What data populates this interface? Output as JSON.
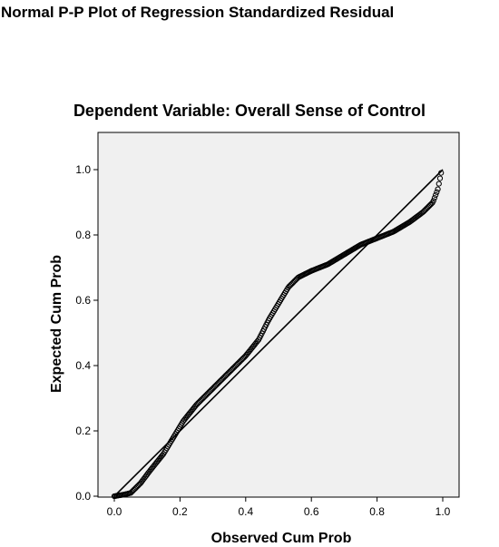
{
  "chart_data": {
    "type": "scatter",
    "title": "Normal P-P Plot of Regression Standardized Residual",
    "subtitle": "Dependent Variable: Overall Sense of Control",
    "xlabel": "Observed Cum Prob",
    "ylabel": "Expected Cum Prob",
    "xlim": [
      0,
      1
    ],
    "ylim": [
      0,
      1
    ],
    "x_ticks": [
      "0.0",
      "0.2",
      "0.4",
      "0.6",
      "0.8",
      "1.0"
    ],
    "y_ticks": [
      "0.0",
      "0.2",
      "0.4",
      "0.6",
      "0.8",
      "1.0"
    ],
    "reference_line": {
      "from": [
        0,
        0
      ],
      "to": [
        1,
        1
      ]
    },
    "grid": false,
    "legend": "none",
    "marker": "open-circle",
    "colors": {
      "plot_background": "#f0f0f0",
      "marker": "#000000",
      "line": "#000000"
    },
    "curve": [
      [
        0.0,
        0.0
      ],
      [
        0.03,
        0.005
      ],
      [
        0.05,
        0.01
      ],
      [
        0.08,
        0.04
      ],
      [
        0.11,
        0.08
      ],
      [
        0.15,
        0.13
      ],
      [
        0.18,
        0.18
      ],
      [
        0.21,
        0.23
      ],
      [
        0.25,
        0.28
      ],
      [
        0.3,
        0.33
      ],
      [
        0.35,
        0.38
      ],
      [
        0.4,
        0.43
      ],
      [
        0.44,
        0.48
      ],
      [
        0.47,
        0.54
      ],
      [
        0.5,
        0.59
      ],
      [
        0.53,
        0.64
      ],
      [
        0.56,
        0.67
      ],
      [
        0.6,
        0.69
      ],
      [
        0.65,
        0.71
      ],
      [
        0.7,
        0.74
      ],
      [
        0.75,
        0.77
      ],
      [
        0.8,
        0.79
      ],
      [
        0.85,
        0.81
      ],
      [
        0.9,
        0.84
      ],
      [
        0.94,
        0.87
      ],
      [
        0.97,
        0.9
      ],
      [
        0.985,
        0.94
      ],
      [
        0.995,
        0.99
      ]
    ],
    "n_points": 300
  }
}
